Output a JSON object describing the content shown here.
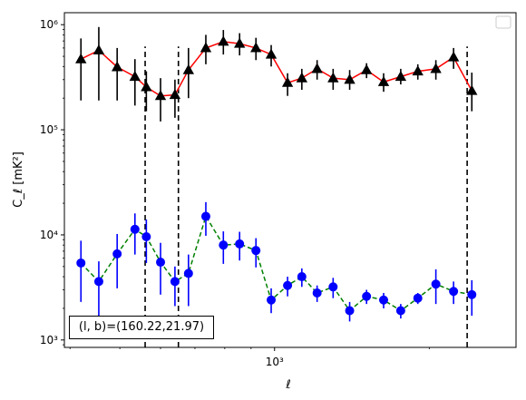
{
  "chart_data": {
    "type": "scatter",
    "title": "",
    "xlabel": "ℓ",
    "ylabel": "C_ℓ  [mK²]",
    "xscale": "log",
    "yscale": "log",
    "xlim": [
      390,
      2950
    ],
    "ylim": [
      850,
      1300000
    ],
    "x_tick_labels": [
      {
        "value": 1000,
        "label": "10³"
      }
    ],
    "y_tick_labels": [
      {
        "value": 1000,
        "label": "10³"
      },
      {
        "value": 10000,
        "label": "10⁴"
      },
      {
        "value": 100000,
        "label": "10⁵"
      },
      {
        "value": 1000000,
        "label": "10⁶"
      }
    ],
    "grid": false,
    "legend": "empty legend box, top-right",
    "vertical_lines": [
      {
        "x": 560,
        "ymin": 850,
        "ymax": 620000,
        "style": "dashed",
        "color": "#000000"
      },
      {
        "x": 650,
        "ymin": 850,
        "ymax": 620000,
        "style": "dashed",
        "color": "#000000"
      },
      {
        "x": 2370,
        "ymin": 850,
        "ymax": 620000,
        "style": "dashed",
        "color": "#000000"
      }
    ],
    "series": [
      {
        "marker": "triangle",
        "color": "#000000",
        "line_color": "#ff0000",
        "line_style": "solid",
        "points": [
          {
            "x": 420,
            "y": 470000,
            "lo": 190000,
            "hi": 740000
          },
          {
            "x": 455,
            "y": 570000,
            "lo": 190000,
            "hi": 950000
          },
          {
            "x": 494,
            "y": 395000,
            "lo": 190000,
            "hi": 600000
          },
          {
            "x": 535,
            "y": 320000,
            "lo": 170000,
            "hi": 470000
          },
          {
            "x": 563,
            "y": 255000,
            "lo": 150000,
            "hi": 360000
          },
          {
            "x": 600,
            "y": 210000,
            "lo": 120000,
            "hi": 310000
          },
          {
            "x": 640,
            "y": 215000,
            "lo": 130000,
            "hi": 300000
          },
          {
            "x": 680,
            "y": 370000,
            "lo": 200000,
            "hi": 600000
          },
          {
            "x": 735,
            "y": 600000,
            "lo": 420000,
            "hi": 800000
          },
          {
            "x": 795,
            "y": 690000,
            "lo": 520000,
            "hi": 890000
          },
          {
            "x": 855,
            "y": 660000,
            "lo": 510000,
            "hi": 830000
          },
          {
            "x": 920,
            "y": 600000,
            "lo": 460000,
            "hi": 750000
          },
          {
            "x": 985,
            "y": 520000,
            "lo": 400000,
            "hi": 640000
          },
          {
            "x": 1060,
            "y": 280000,
            "lo": 210000,
            "hi": 345000
          },
          {
            "x": 1130,
            "y": 310000,
            "lo": 240000,
            "hi": 380000
          },
          {
            "x": 1210,
            "y": 380000,
            "lo": 300000,
            "hi": 460000
          },
          {
            "x": 1300,
            "y": 310000,
            "lo": 240000,
            "hi": 380000
          },
          {
            "x": 1400,
            "y": 300000,
            "lo": 240000,
            "hi": 370000
          },
          {
            "x": 1510,
            "y": 370000,
            "lo": 310000,
            "hi": 430000
          },
          {
            "x": 1630,
            "y": 285000,
            "lo": 230000,
            "hi": 345000
          },
          {
            "x": 1760,
            "y": 320000,
            "lo": 270000,
            "hi": 380000
          },
          {
            "x": 1900,
            "y": 360000,
            "lo": 300000,
            "hi": 420000
          },
          {
            "x": 2060,
            "y": 380000,
            "lo": 300000,
            "hi": 460000
          },
          {
            "x": 2230,
            "y": 490000,
            "lo": 380000,
            "hi": 600000
          },
          {
            "x": 2420,
            "y": 235000,
            "lo": 150000,
            "hi": 350000
          }
        ]
      },
      {
        "marker": "circle",
        "color": "#0000ff",
        "line_color": "#008000",
        "line_style": "dashed",
        "points": [
          {
            "x": 420,
            "y": 5400,
            "lo": 2300,
            "hi": 8800
          },
          {
            "x": 455,
            "y": 3600,
            "lo": 1600,
            "hi": 5600
          },
          {
            "x": 494,
            "y": 6600,
            "lo": 3100,
            "hi": 10200
          },
          {
            "x": 535,
            "y": 11300,
            "lo": 6500,
            "hi": 16000
          },
          {
            "x": 563,
            "y": 9600,
            "lo": 5400,
            "hi": 14000
          },
          {
            "x": 600,
            "y": 5500,
            "lo": 2700,
            "hi": 8400
          },
          {
            "x": 640,
            "y": 3600,
            "lo": 2100,
            "hi": 5000
          },
          {
            "x": 680,
            "y": 4300,
            "lo": 2100,
            "hi": 6500
          },
          {
            "x": 735,
            "y": 15000,
            "lo": 9800,
            "hi": 20500
          },
          {
            "x": 795,
            "y": 8000,
            "lo": 5300,
            "hi": 10800
          },
          {
            "x": 855,
            "y": 8200,
            "lo": 5700,
            "hi": 10700
          },
          {
            "x": 920,
            "y": 7100,
            "lo": 4900,
            "hi": 9300
          },
          {
            "x": 985,
            "y": 2400,
            "lo": 1800,
            "hi": 3100
          },
          {
            "x": 1060,
            "y": 3300,
            "lo": 2600,
            "hi": 4000
          },
          {
            "x": 1130,
            "y": 4000,
            "lo": 3200,
            "hi": 4800
          },
          {
            "x": 1210,
            "y": 2800,
            "lo": 2300,
            "hi": 3300
          },
          {
            "x": 1300,
            "y": 3200,
            "lo": 2500,
            "hi": 3900
          },
          {
            "x": 1400,
            "y": 1900,
            "lo": 1500,
            "hi": 2300
          },
          {
            "x": 1510,
            "y": 2600,
            "lo": 2200,
            "hi": 3000
          },
          {
            "x": 1630,
            "y": 2400,
            "lo": 2000,
            "hi": 2800
          },
          {
            "x": 1760,
            "y": 1900,
            "lo": 1600,
            "hi": 2200
          },
          {
            "x": 1900,
            "y": 2500,
            "lo": 2200,
            "hi": 2800
          },
          {
            "x": 2060,
            "y": 3400,
            "lo": 2200,
            "hi": 4700
          },
          {
            "x": 2230,
            "y": 2900,
            "lo": 2200,
            "hi": 3600
          },
          {
            "x": 2420,
            "y": 2700,
            "lo": 1700,
            "hi": 3700
          }
        ]
      }
    ],
    "annotation": "(l, b)=(160.22,21.97)"
  }
}
